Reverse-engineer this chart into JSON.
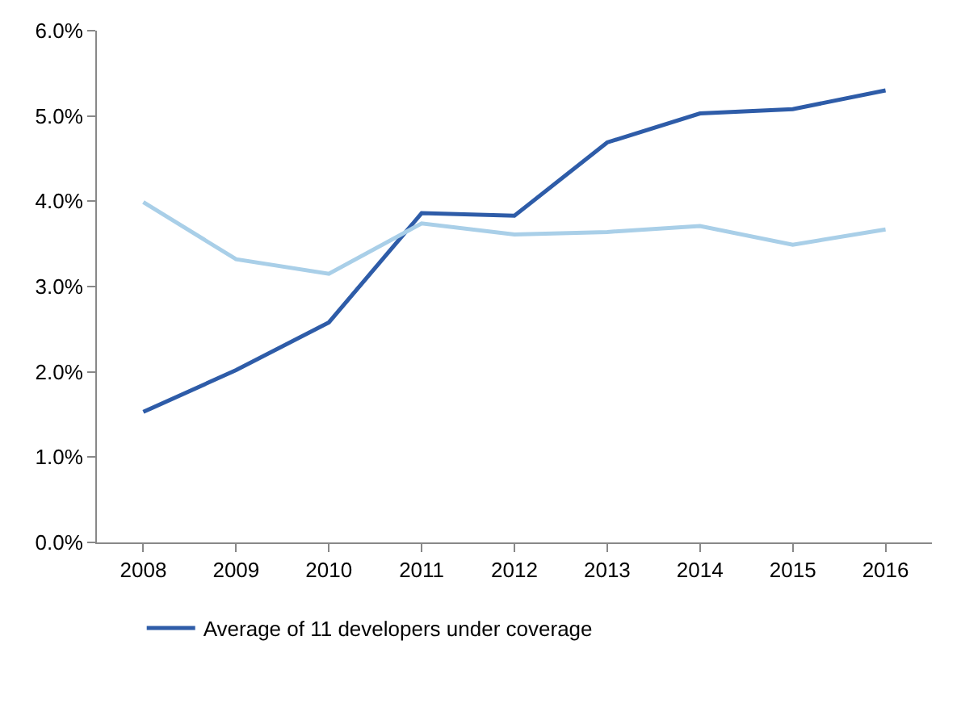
{
  "chart_data": {
    "type": "line",
    "categories": [
      "2008",
      "2009",
      "2010",
      "2011",
      "2012",
      "2013",
      "2014",
      "2015",
      "2016"
    ],
    "series": [
      {
        "name": "Average of 11 developers under coverage",
        "color": "#2e5ca8",
        "values": [
          1.53,
          2.02,
          2.58,
          3.86,
          3.83,
          4.69,
          5.03,
          5.08,
          5.3
        ]
      },
      {
        "color": "#a9cfe8",
        "values": [
          3.99,
          3.32,
          3.15,
          3.74,
          3.61,
          3.64,
          3.71,
          3.49,
          3.67
        ]
      }
    ],
    "ylim": [
      0,
      6
    ],
    "yticks": [
      {
        "value": 0,
        "label": "0.0%"
      },
      {
        "value": 1,
        "label": "1.0%"
      },
      {
        "value": 2,
        "label": "2.0%"
      },
      {
        "value": 3,
        "label": "3.0%"
      },
      {
        "value": 4,
        "label": "4.0%"
      },
      {
        "value": 5,
        "label": "5.0%"
      },
      {
        "value": 6,
        "label": "6.0%"
      }
    ],
    "grid": false,
    "legend": "bottom",
    "marker": "none",
    "line_style": "solid"
  }
}
